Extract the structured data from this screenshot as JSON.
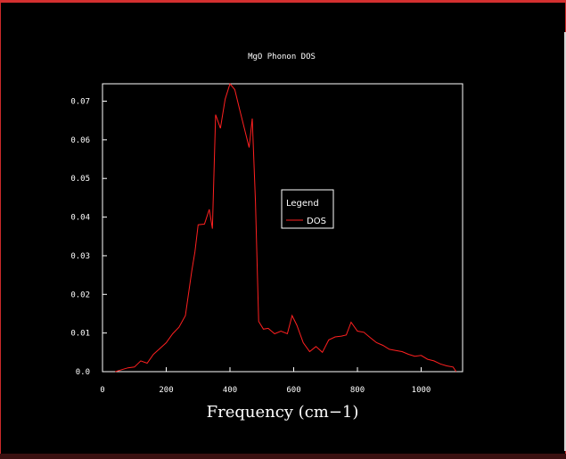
{
  "chart_data": {
    "type": "line",
    "title": "MgO Phonon DOS",
    "xlabel": "Frequency (cm−1)",
    "ylabel": "",
    "xlim": [
      0,
      1130
    ],
    "ylim": [
      0,
      0.0745
    ],
    "x_ticks": [
      0,
      200,
      400,
      600,
      800,
      1000
    ],
    "x_tick_labels": [
      "0",
      "200",
      "400",
      "600",
      "800",
      "1000"
    ],
    "y_ticks": [
      0.0,
      0.01,
      0.02,
      0.03,
      0.04,
      0.05,
      0.06,
      0.07
    ],
    "y_tick_labels": [
      "0.0",
      "0.01",
      "0.02",
      "0.03",
      "0.04",
      "0.05",
      "0.06",
      "0.07"
    ],
    "grid": false,
    "legend": {
      "title": "Legend",
      "position": "center-right"
    },
    "series": [
      {
        "name": "DOS",
        "color": "#ff2020",
        "x": [
          40,
          60,
          80,
          100,
          120,
          140,
          160,
          180,
          200,
          220,
          240,
          260,
          280,
          290,
          300,
          320,
          335,
          345,
          355,
          370,
          385,
          400,
          415,
          430,
          445,
          460,
          470,
          480,
          490,
          505,
          520,
          540,
          560,
          580,
          595,
          610,
          630,
          650,
          670,
          690,
          710,
          730,
          750,
          765,
          780,
          800,
          820,
          840,
          860,
          880,
          900,
          920,
          940,
          960,
          980,
          1000,
          1020,
          1040,
          1060,
          1080,
          1100,
          1110
        ],
        "y": [
          0.0,
          0.0005,
          0.001,
          0.0012,
          0.0028,
          0.0022,
          0.0045,
          0.006,
          0.0075,
          0.0098,
          0.0115,
          0.0145,
          0.026,
          0.031,
          0.038,
          0.0382,
          0.042,
          0.037,
          0.0665,
          0.063,
          0.0705,
          0.0745,
          0.073,
          0.068,
          0.063,
          0.058,
          0.0655,
          0.044,
          0.013,
          0.011,
          0.0112,
          0.0098,
          0.0105,
          0.0098,
          0.0145,
          0.012,
          0.0075,
          0.0052,
          0.0065,
          0.005,
          0.0082,
          0.009,
          0.0092,
          0.0095,
          0.0128,
          0.0105,
          0.0102,
          0.0088,
          0.0075,
          0.0068,
          0.0058,
          0.0055,
          0.0052,
          0.0045,
          0.004,
          0.0042,
          0.0032,
          0.0028,
          0.002,
          0.0015,
          0.0012,
          0.0
        ]
      }
    ]
  }
}
